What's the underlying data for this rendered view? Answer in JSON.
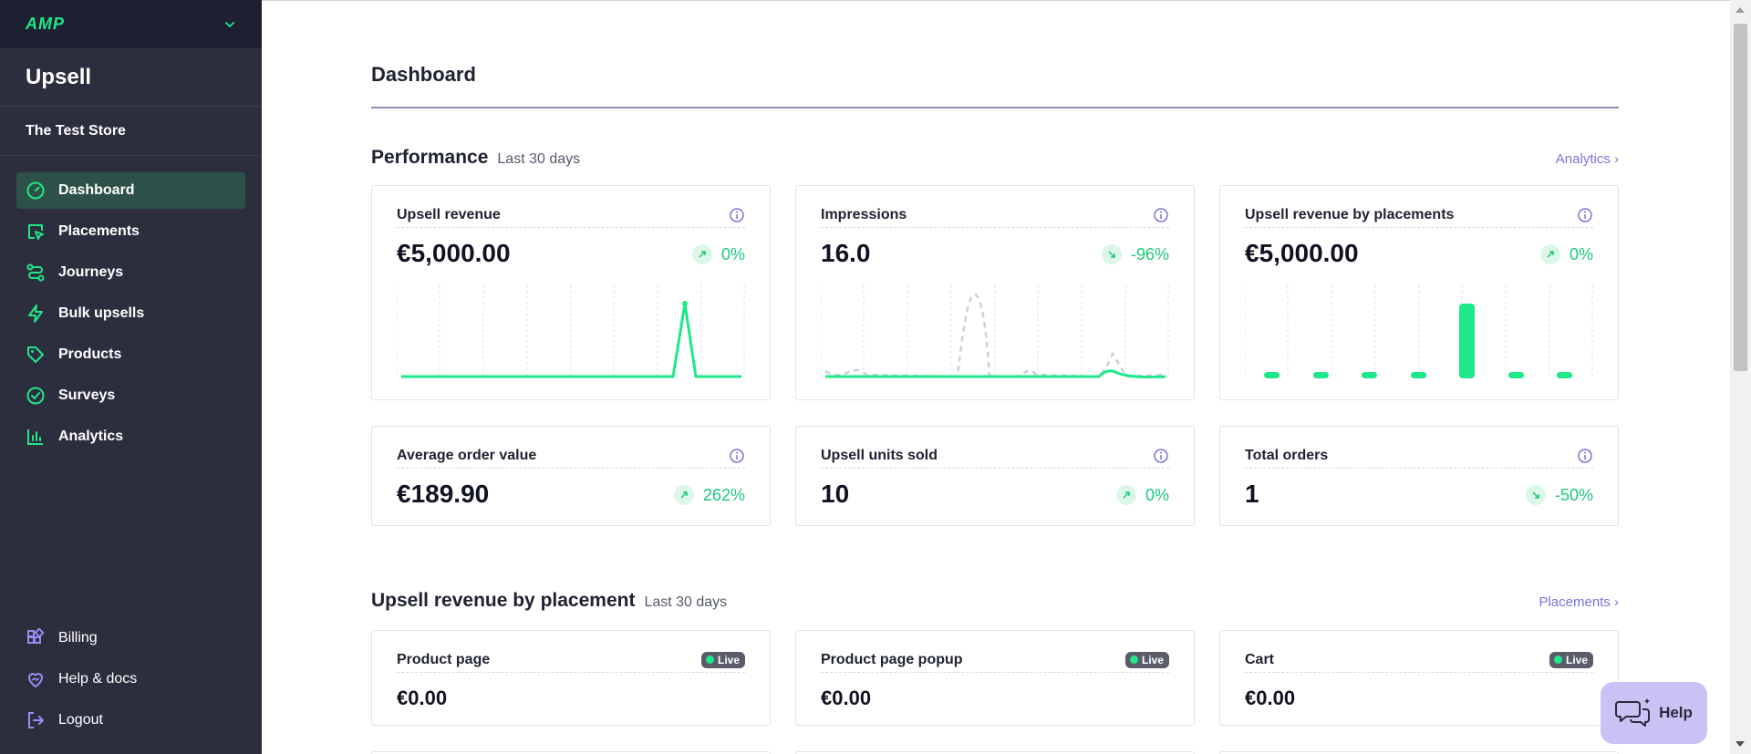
{
  "sidebar": {
    "brand": "AMP",
    "app_name": "Upsell",
    "store_name": "The Test Store",
    "nav_items": [
      {
        "label": "Dashboard",
        "icon": "gauge-icon",
        "active": true
      },
      {
        "label": "Placements",
        "icon": "cursor-box-icon",
        "active": false
      },
      {
        "label": "Journeys",
        "icon": "route-icon",
        "active": false
      },
      {
        "label": "Bulk upsells",
        "icon": "lightning-icon",
        "active": false
      },
      {
        "label": "Products",
        "icon": "tag-icon",
        "active": false
      },
      {
        "label": "Surveys",
        "icon": "check-circle-icon",
        "active": false
      },
      {
        "label": "Analytics",
        "icon": "bar-chart-icon",
        "active": false
      }
    ],
    "bottom_items": [
      {
        "label": "Billing",
        "icon": "apps-icon"
      },
      {
        "label": "Help & docs",
        "icon": "heart-hand-icon"
      },
      {
        "label": "Logout",
        "icon": "logout-icon"
      }
    ]
  },
  "page": {
    "title": "Dashboard"
  },
  "performance": {
    "title": "Performance",
    "subtitle": "Last 30 days",
    "link": "Analytics",
    "cards": [
      {
        "title": "Upsell revenue",
        "value": "€5,000.00",
        "change": "0%",
        "trend": "up"
      },
      {
        "title": "Impressions",
        "value": "16.0",
        "change": "-96%",
        "trend": "down"
      },
      {
        "title": "Upsell revenue by placements",
        "value": "€5,000.00",
        "change": "0%",
        "trend": "up"
      },
      {
        "title": "Average order value",
        "value": "€189.90",
        "change": "262%",
        "trend": "up"
      },
      {
        "title": "Upsell units sold",
        "value": "10",
        "change": "0%",
        "trend": "up"
      },
      {
        "title": "Total orders",
        "value": "1",
        "change": "-50%",
        "trend": "down"
      }
    ]
  },
  "placements_section": {
    "title": "Upsell revenue by placement",
    "subtitle": "Last 30 days",
    "link": "Placements",
    "live_label": "Live",
    "cards": [
      {
        "title": "Product page",
        "value": "€0.00"
      },
      {
        "title": "Product page popup",
        "value": "€0.00"
      },
      {
        "title": "Cart",
        "value": "€0.00"
      }
    ]
  },
  "help_button": {
    "label": "Help"
  },
  "colors": {
    "accent_green": "#22e68a",
    "accent_purple": "#7b74dd",
    "sidebar_bg": "#2c2e3e"
  }
}
